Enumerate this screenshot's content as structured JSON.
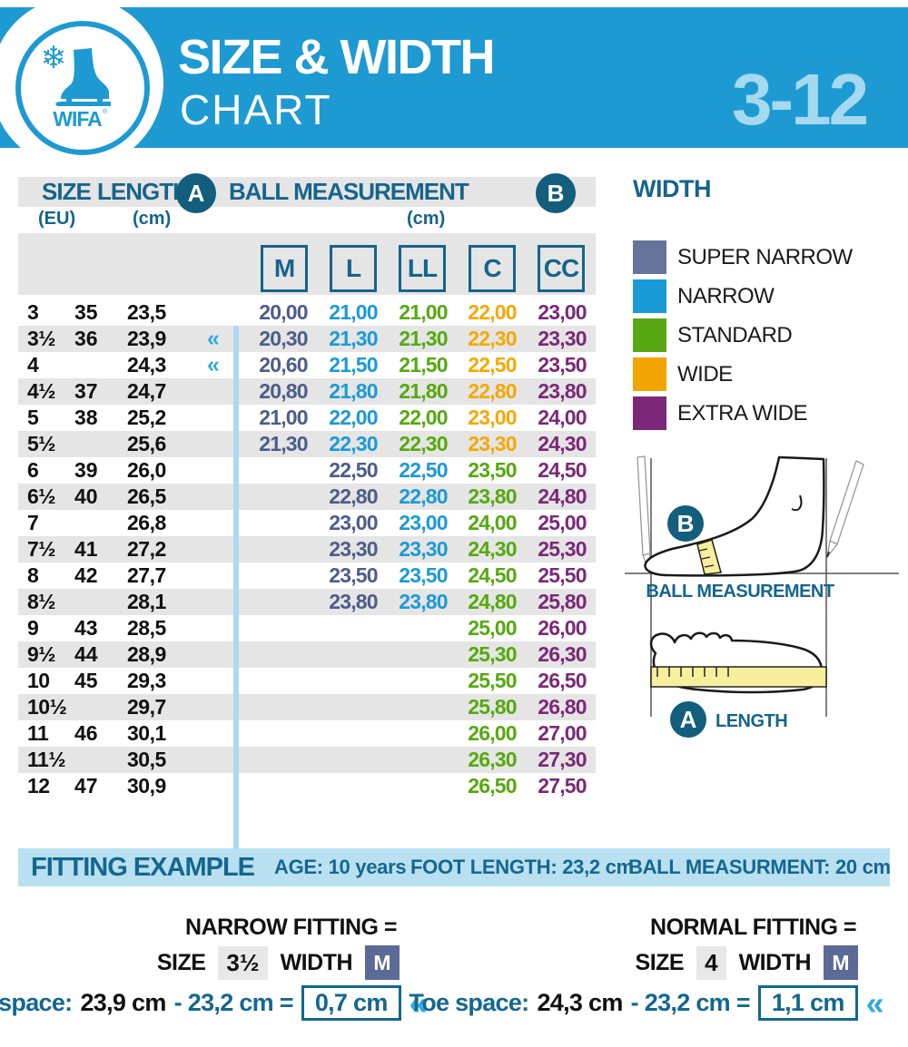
{
  "header": {
    "logo_text": "WIFA",
    "title_line1": "SIZE & WIDTH",
    "title_line2": "CHART",
    "size_range": "3-12",
    "band_color": "#1e9ad3",
    "range_color": "#a5d9ef"
  },
  "table_header": {
    "size_label": "SIZE",
    "size_unit": "(EU)",
    "length_label": "LENGTH",
    "length_unit": "(cm)",
    "length_badge": "A",
    "ball_label": "BALL MEASUREMENT",
    "ball_unit": "(cm)",
    "ball_badge": "B"
  },
  "chart_data": {
    "type": "table",
    "title": "SIZE & WIDTH CHART 3-12",
    "columns": [
      "SIZE",
      "EU",
      "LENGTH (cm)",
      "M",
      "L",
      "LL",
      "C",
      "CC"
    ],
    "width_columns": [
      "M",
      "L",
      "LL",
      "C",
      "CC"
    ],
    "palette": {
      "sn": "#4d5c8a",
      "n": "#1b9ad6",
      "st": "#55a90f",
      "w": "#f5a800",
      "xw": "#7c2878"
    },
    "rows": [
      {
        "size": "3",
        "eu": "35",
        "length": "23,5",
        "arrow": false,
        "values": [
          [
            "20,00",
            "sn"
          ],
          [
            "21,00",
            "n"
          ],
          [
            "21,00",
            "st"
          ],
          [
            "22,00",
            "w"
          ],
          [
            "23,00",
            "xw"
          ]
        ]
      },
      {
        "size": "3½",
        "eu": "36",
        "length": "23,9",
        "arrow": true,
        "values": [
          [
            "20,30",
            "sn"
          ],
          [
            "21,30",
            "n"
          ],
          [
            "21,30",
            "st"
          ],
          [
            "22,30",
            "w"
          ],
          [
            "23,30",
            "xw"
          ]
        ]
      },
      {
        "size": "4",
        "eu": "",
        "length": "24,3",
        "arrow": true,
        "values": [
          [
            "20,60",
            "sn"
          ],
          [
            "21,50",
            "n"
          ],
          [
            "21,50",
            "st"
          ],
          [
            "22,50",
            "w"
          ],
          [
            "23,50",
            "xw"
          ]
        ]
      },
      {
        "size": "4½",
        "eu": "37",
        "length": "24,7",
        "arrow": false,
        "values": [
          [
            "20,80",
            "sn"
          ],
          [
            "21,80",
            "n"
          ],
          [
            "21,80",
            "st"
          ],
          [
            "22,80",
            "w"
          ],
          [
            "23,80",
            "xw"
          ]
        ]
      },
      {
        "size": "5",
        "eu": "38",
        "length": "25,2",
        "arrow": false,
        "values": [
          [
            "21,00",
            "sn"
          ],
          [
            "22,00",
            "n"
          ],
          [
            "22,00",
            "st"
          ],
          [
            "23,00",
            "w"
          ],
          [
            "24,00",
            "xw"
          ]
        ]
      },
      {
        "size": "5½",
        "eu": "",
        "length": "25,6",
        "arrow": false,
        "values": [
          [
            "21,30",
            "sn"
          ],
          [
            "22,30",
            "n"
          ],
          [
            "22,30",
            "st"
          ],
          [
            "23,30",
            "w"
          ],
          [
            "24,30",
            "xw"
          ]
        ]
      },
      {
        "size": "6",
        "eu": "39",
        "length": "26,0",
        "arrow": false,
        "values": [
          null,
          [
            "22,50",
            "sn"
          ],
          [
            "22,50",
            "n"
          ],
          [
            "23,50",
            "st"
          ],
          [
            "24,50",
            "xw"
          ]
        ]
      },
      {
        "size": "6½",
        "eu": "40",
        "length": "26,5",
        "arrow": false,
        "values": [
          null,
          [
            "22,80",
            "sn"
          ],
          [
            "22,80",
            "n"
          ],
          [
            "23,80",
            "st"
          ],
          [
            "24,80",
            "xw"
          ]
        ]
      },
      {
        "size": "7",
        "eu": "",
        "length": "26,8",
        "arrow": false,
        "values": [
          null,
          [
            "23,00",
            "sn"
          ],
          [
            "23,00",
            "n"
          ],
          [
            "24,00",
            "st"
          ],
          [
            "25,00",
            "xw"
          ]
        ]
      },
      {
        "size": "7½",
        "eu": "41",
        "length": "27,2",
        "arrow": false,
        "values": [
          null,
          [
            "23,30",
            "sn"
          ],
          [
            "23,30",
            "n"
          ],
          [
            "24,30",
            "st"
          ],
          [
            "25,30",
            "xw"
          ]
        ]
      },
      {
        "size": "8",
        "eu": "42",
        "length": "27,7",
        "arrow": false,
        "values": [
          null,
          [
            "23,50",
            "sn"
          ],
          [
            "23,50",
            "n"
          ],
          [
            "24,50",
            "st"
          ],
          [
            "25,50",
            "xw"
          ]
        ]
      },
      {
        "size": "8½",
        "eu": "",
        "length": "28,1",
        "arrow": false,
        "values": [
          null,
          [
            "23,80",
            "sn"
          ],
          [
            "23,80",
            "n"
          ],
          [
            "24,80",
            "st"
          ],
          [
            "25,80",
            "xw"
          ]
        ]
      },
      {
        "size": "9",
        "eu": "43",
        "length": "28,5",
        "arrow": false,
        "values": [
          null,
          null,
          null,
          [
            "25,00",
            "st"
          ],
          [
            "26,00",
            "xw"
          ]
        ]
      },
      {
        "size": "9½",
        "eu": "44",
        "length": "28,9",
        "arrow": false,
        "values": [
          null,
          null,
          null,
          [
            "25,30",
            "st"
          ],
          [
            "26,30",
            "xw"
          ]
        ]
      },
      {
        "size": "10",
        "eu": "45",
        "length": "29,3",
        "arrow": false,
        "values": [
          null,
          null,
          null,
          [
            "25,50",
            "st"
          ],
          [
            "26,50",
            "xw"
          ]
        ]
      },
      {
        "size": "10½",
        "eu": "",
        "length": "29,7",
        "arrow": false,
        "values": [
          null,
          null,
          null,
          [
            "25,80",
            "st"
          ],
          [
            "26,80",
            "xw"
          ]
        ]
      },
      {
        "size": "11",
        "eu": "46",
        "length": "30,1",
        "arrow": false,
        "values": [
          null,
          null,
          null,
          [
            "26,00",
            "st"
          ],
          [
            "27,00",
            "xw"
          ]
        ]
      },
      {
        "size": "11½",
        "eu": "",
        "length": "30,5",
        "arrow": false,
        "values": [
          null,
          null,
          null,
          [
            "26,30",
            "st"
          ],
          [
            "27,30",
            "xw"
          ]
        ]
      },
      {
        "size": "12",
        "eu": "47",
        "length": "30,9",
        "arrow": false,
        "values": [
          null,
          null,
          null,
          [
            "26,50",
            "st"
          ],
          [
            "27,50",
            "xw"
          ]
        ]
      }
    ]
  },
  "width_legend": {
    "title": "WIDTH",
    "items": [
      {
        "label": "SUPER NARROW",
        "color": "#66749c"
      },
      {
        "label": "NARROW",
        "color": "#1a9ad6"
      },
      {
        "label": "STANDARD",
        "color": "#58a713"
      },
      {
        "label": "WIDE",
        "color": "#f2a500"
      },
      {
        "label": "EXTRA WIDE",
        "color": "#7c2878"
      }
    ]
  },
  "diagram": {
    "badge_b": "B",
    "ball_label": "BALL MEASUREMENT",
    "badge_a": "A",
    "length_label": "LENGTH"
  },
  "fitting_example": {
    "title": "FITTING EXAMPLE",
    "items": [
      {
        "label": "AGE:",
        "value": "10 years"
      },
      {
        "label": "FOOT LENGTH:",
        "value": "23,2 cm"
      },
      {
        "label": "BALL MEASURMENT:",
        "value": "20 cm"
      }
    ]
  },
  "fitting_blocks": [
    {
      "title": "NARROW FITTING =",
      "size_label": "SIZE",
      "size_value": "3½",
      "width_label": "WIDTH",
      "width_value": "M",
      "toe_label": "Toe space:",
      "foot_first": "23,9 cm",
      "foot_rest": "- 23,2 cm =",
      "result": "0,7 cm",
      "chevron": "«"
    },
    {
      "title": "NORMAL FITTING =",
      "size_label": "SIZE",
      "size_value": "4",
      "width_label": "WIDTH",
      "width_value": "M",
      "toe_label": "Toe space:",
      "foot_first": "24,3 cm",
      "foot_rest": "- 23,2 cm =",
      "result": "1,1 cm",
      "chevron": "«"
    }
  ]
}
